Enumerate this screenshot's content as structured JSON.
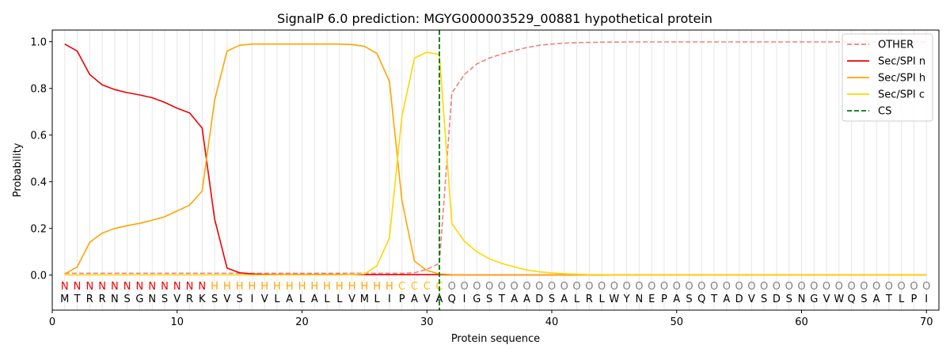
{
  "chart_data": {
    "type": "line",
    "title": "SignalP 6.0 prediction: MGYG000003529_00881 hypothetical protein",
    "xlabel": "Protein sequence",
    "ylabel": "Probability",
    "xlim": [
      0,
      71
    ],
    "ylim": [
      -0.15,
      1.05
    ],
    "x_ticks": [
      0,
      10,
      20,
      30,
      40,
      50,
      60,
      70
    ],
    "y_ticks": [
      0.0,
      0.2,
      0.4,
      0.6,
      0.8,
      1.0
    ],
    "x_tick_labels": [
      "0",
      "10",
      "20",
      "30",
      "40",
      "50",
      "60",
      "70"
    ],
    "y_tick_labels": [
      "0.0",
      "0.2",
      "0.4",
      "0.6",
      "0.8",
      "1.0"
    ],
    "grid": "vertical lines at each residue",
    "legend_position": "top-right",
    "sequence": [
      "M",
      "T",
      "R",
      "R",
      "N",
      "S",
      "G",
      "N",
      "S",
      "V",
      "R",
      "K",
      "S",
      "V",
      "S",
      "I",
      "V",
      "L",
      "A",
      "L",
      "A",
      "L",
      "L",
      "V",
      "M",
      "L",
      "I",
      "P",
      "A",
      "V",
      "A",
      "Q",
      "I",
      "G",
      "S",
      "T",
      "A",
      "A",
      "D",
      "S",
      "A",
      "L",
      "R",
      "L",
      "W",
      "Y",
      "N",
      "E",
      "P",
      "A",
      "S",
      "Q",
      "T",
      "A",
      "D",
      "V",
      "S",
      "D",
      "S",
      "N",
      "G",
      "V",
      "W",
      "Q",
      "S",
      "A",
      "T",
      "L",
      "P",
      "I"
    ],
    "region_labels": [
      "N",
      "N",
      "N",
      "N",
      "N",
      "N",
      "N",
      "N",
      "N",
      "N",
      "N",
      "N",
      "H",
      "H",
      "H",
      "H",
      "H",
      "H",
      "H",
      "H",
      "H",
      "H",
      "H",
      "H",
      "H",
      "H",
      "H",
      "C",
      "C",
      "C",
      "C",
      "O",
      "O",
      "O",
      "O",
      "O",
      "O",
      "O",
      "O",
      "O",
      "O",
      "O",
      "O",
      "O",
      "O",
      "O",
      "O",
      "O",
      "O",
      "O",
      "O",
      "O",
      "O",
      "O",
      "O",
      "O",
      "O",
      "O",
      "O",
      "O",
      "O",
      "O",
      "O",
      "O",
      "O",
      "O",
      "O",
      "O",
      "O",
      "O"
    ],
    "region_colors": {
      "N": "#ee0000",
      "H": "#ffa500",
      "C": "#ffbf00",
      "O": "#7f7f7f"
    },
    "cleavage_site": 31,
    "series": [
      {
        "name": "OTHER",
        "color": "#f08080",
        "dash": "dashed",
        "values": [
          0.008,
          0.008,
          0.008,
          0.008,
          0.008,
          0.008,
          0.008,
          0.008,
          0.008,
          0.008,
          0.008,
          0.008,
          0.008,
          0.008,
          0.008,
          0.008,
          0.008,
          0.008,
          0.008,
          0.008,
          0.008,
          0.008,
          0.008,
          0.008,
          0.008,
          0.008,
          0.008,
          0.008,
          0.01,
          0.025,
          0.05,
          0.78,
          0.86,
          0.905,
          0.93,
          0.948,
          0.962,
          0.975,
          0.985,
          0.99,
          0.994,
          0.996,
          0.997,
          0.998,
          0.998,
          0.999,
          0.999,
          0.999,
          0.999,
          0.999,
          0.999,
          0.999,
          0.999,
          0.999,
          0.999,
          0.999,
          0.999,
          0.999,
          0.999,
          0.999,
          0.999,
          0.999,
          0.999,
          0.999,
          0.999,
          0.999,
          0.999,
          0.999,
          0.999,
          0.999
        ]
      },
      {
        "name": "Sec/SPI n",
        "color": "#ee0000",
        "dash": "solid",
        "values": [
          0.99,
          0.96,
          0.86,
          0.815,
          0.795,
          0.782,
          0.772,
          0.76,
          0.74,
          0.715,
          0.695,
          0.63,
          0.24,
          0.03,
          0.01,
          0.005,
          0.003,
          0.002,
          0.002,
          0.002,
          0.002,
          0.002,
          0.002,
          0.002,
          0.002,
          0.002,
          0.002,
          0.002,
          0.002,
          0.002,
          0.002,
          0.001,
          0.001,
          0.001,
          0.001,
          0.001,
          0.001,
          0.001,
          0.001,
          0.001,
          0.001,
          0.001,
          0.001,
          0.001,
          0.001,
          0.001,
          0.001,
          0.001,
          0.001,
          0.001,
          0.001,
          0.001,
          0.001,
          0.001,
          0.001,
          0.001,
          0.001,
          0.001,
          0.001,
          0.001,
          0.001,
          0.001,
          0.001,
          0.001,
          0.001,
          0.001,
          0.001,
          0.001,
          0.001,
          0.001
        ]
      },
      {
        "name": "Sec/SPI h",
        "color": "#ffa500",
        "dash": "solid",
        "values": [
          0.005,
          0.035,
          0.14,
          0.18,
          0.2,
          0.212,
          0.222,
          0.235,
          0.25,
          0.275,
          0.3,
          0.36,
          0.75,
          0.96,
          0.985,
          0.99,
          0.99,
          0.99,
          0.99,
          0.99,
          0.99,
          0.99,
          0.99,
          0.988,
          0.98,
          0.95,
          0.83,
          0.32,
          0.06,
          0.02,
          0.005,
          0.002,
          0.001,
          0.001,
          0.001,
          0.001,
          0.001,
          0.001,
          0.001,
          0.001,
          0.001,
          0.001,
          0.001,
          0.001,
          0.001,
          0.001,
          0.001,
          0.001,
          0.001,
          0.001,
          0.001,
          0.001,
          0.001,
          0.001,
          0.001,
          0.001,
          0.001,
          0.001,
          0.001,
          0.001,
          0.001,
          0.001,
          0.001,
          0.001,
          0.001,
          0.001,
          0.001,
          0.001,
          0.001,
          0.001
        ]
      },
      {
        "name": "Sec/SPI c",
        "color": "#ffd700",
        "dash": "solid",
        "values": [
          0.001,
          0.001,
          0.001,
          0.001,
          0.001,
          0.001,
          0.001,
          0.001,
          0.001,
          0.001,
          0.001,
          0.001,
          0.001,
          0.001,
          0.001,
          0.001,
          0.001,
          0.001,
          0.001,
          0.001,
          0.001,
          0.001,
          0.001,
          0.002,
          0.005,
          0.04,
          0.16,
          0.68,
          0.93,
          0.955,
          0.945,
          0.22,
          0.145,
          0.1,
          0.07,
          0.05,
          0.035,
          0.022,
          0.014,
          0.009,
          0.006,
          0.004,
          0.002,
          0.002,
          0.001,
          0.001,
          0.001,
          0.001,
          0.001,
          0.001,
          0.001,
          0.001,
          0.001,
          0.001,
          0.001,
          0.001,
          0.001,
          0.001,
          0.001,
          0.001,
          0.001,
          0.001,
          0.001,
          0.001,
          0.001,
          0.001,
          0.001,
          0.001,
          0.001,
          0.001
        ]
      }
    ],
    "legend": [
      {
        "label": "OTHER",
        "color": "#f08080",
        "dash": "dashed"
      },
      {
        "label": "Sec/SPI n",
        "color": "#ee0000",
        "dash": "solid"
      },
      {
        "label": "Sec/SPI h",
        "color": "#ffa500",
        "dash": "solid"
      },
      {
        "label": "Sec/SPI c",
        "color": "#ffd700",
        "dash": "solid"
      },
      {
        "label": "CS",
        "color": "#007700",
        "dash": "dashed"
      }
    ]
  }
}
